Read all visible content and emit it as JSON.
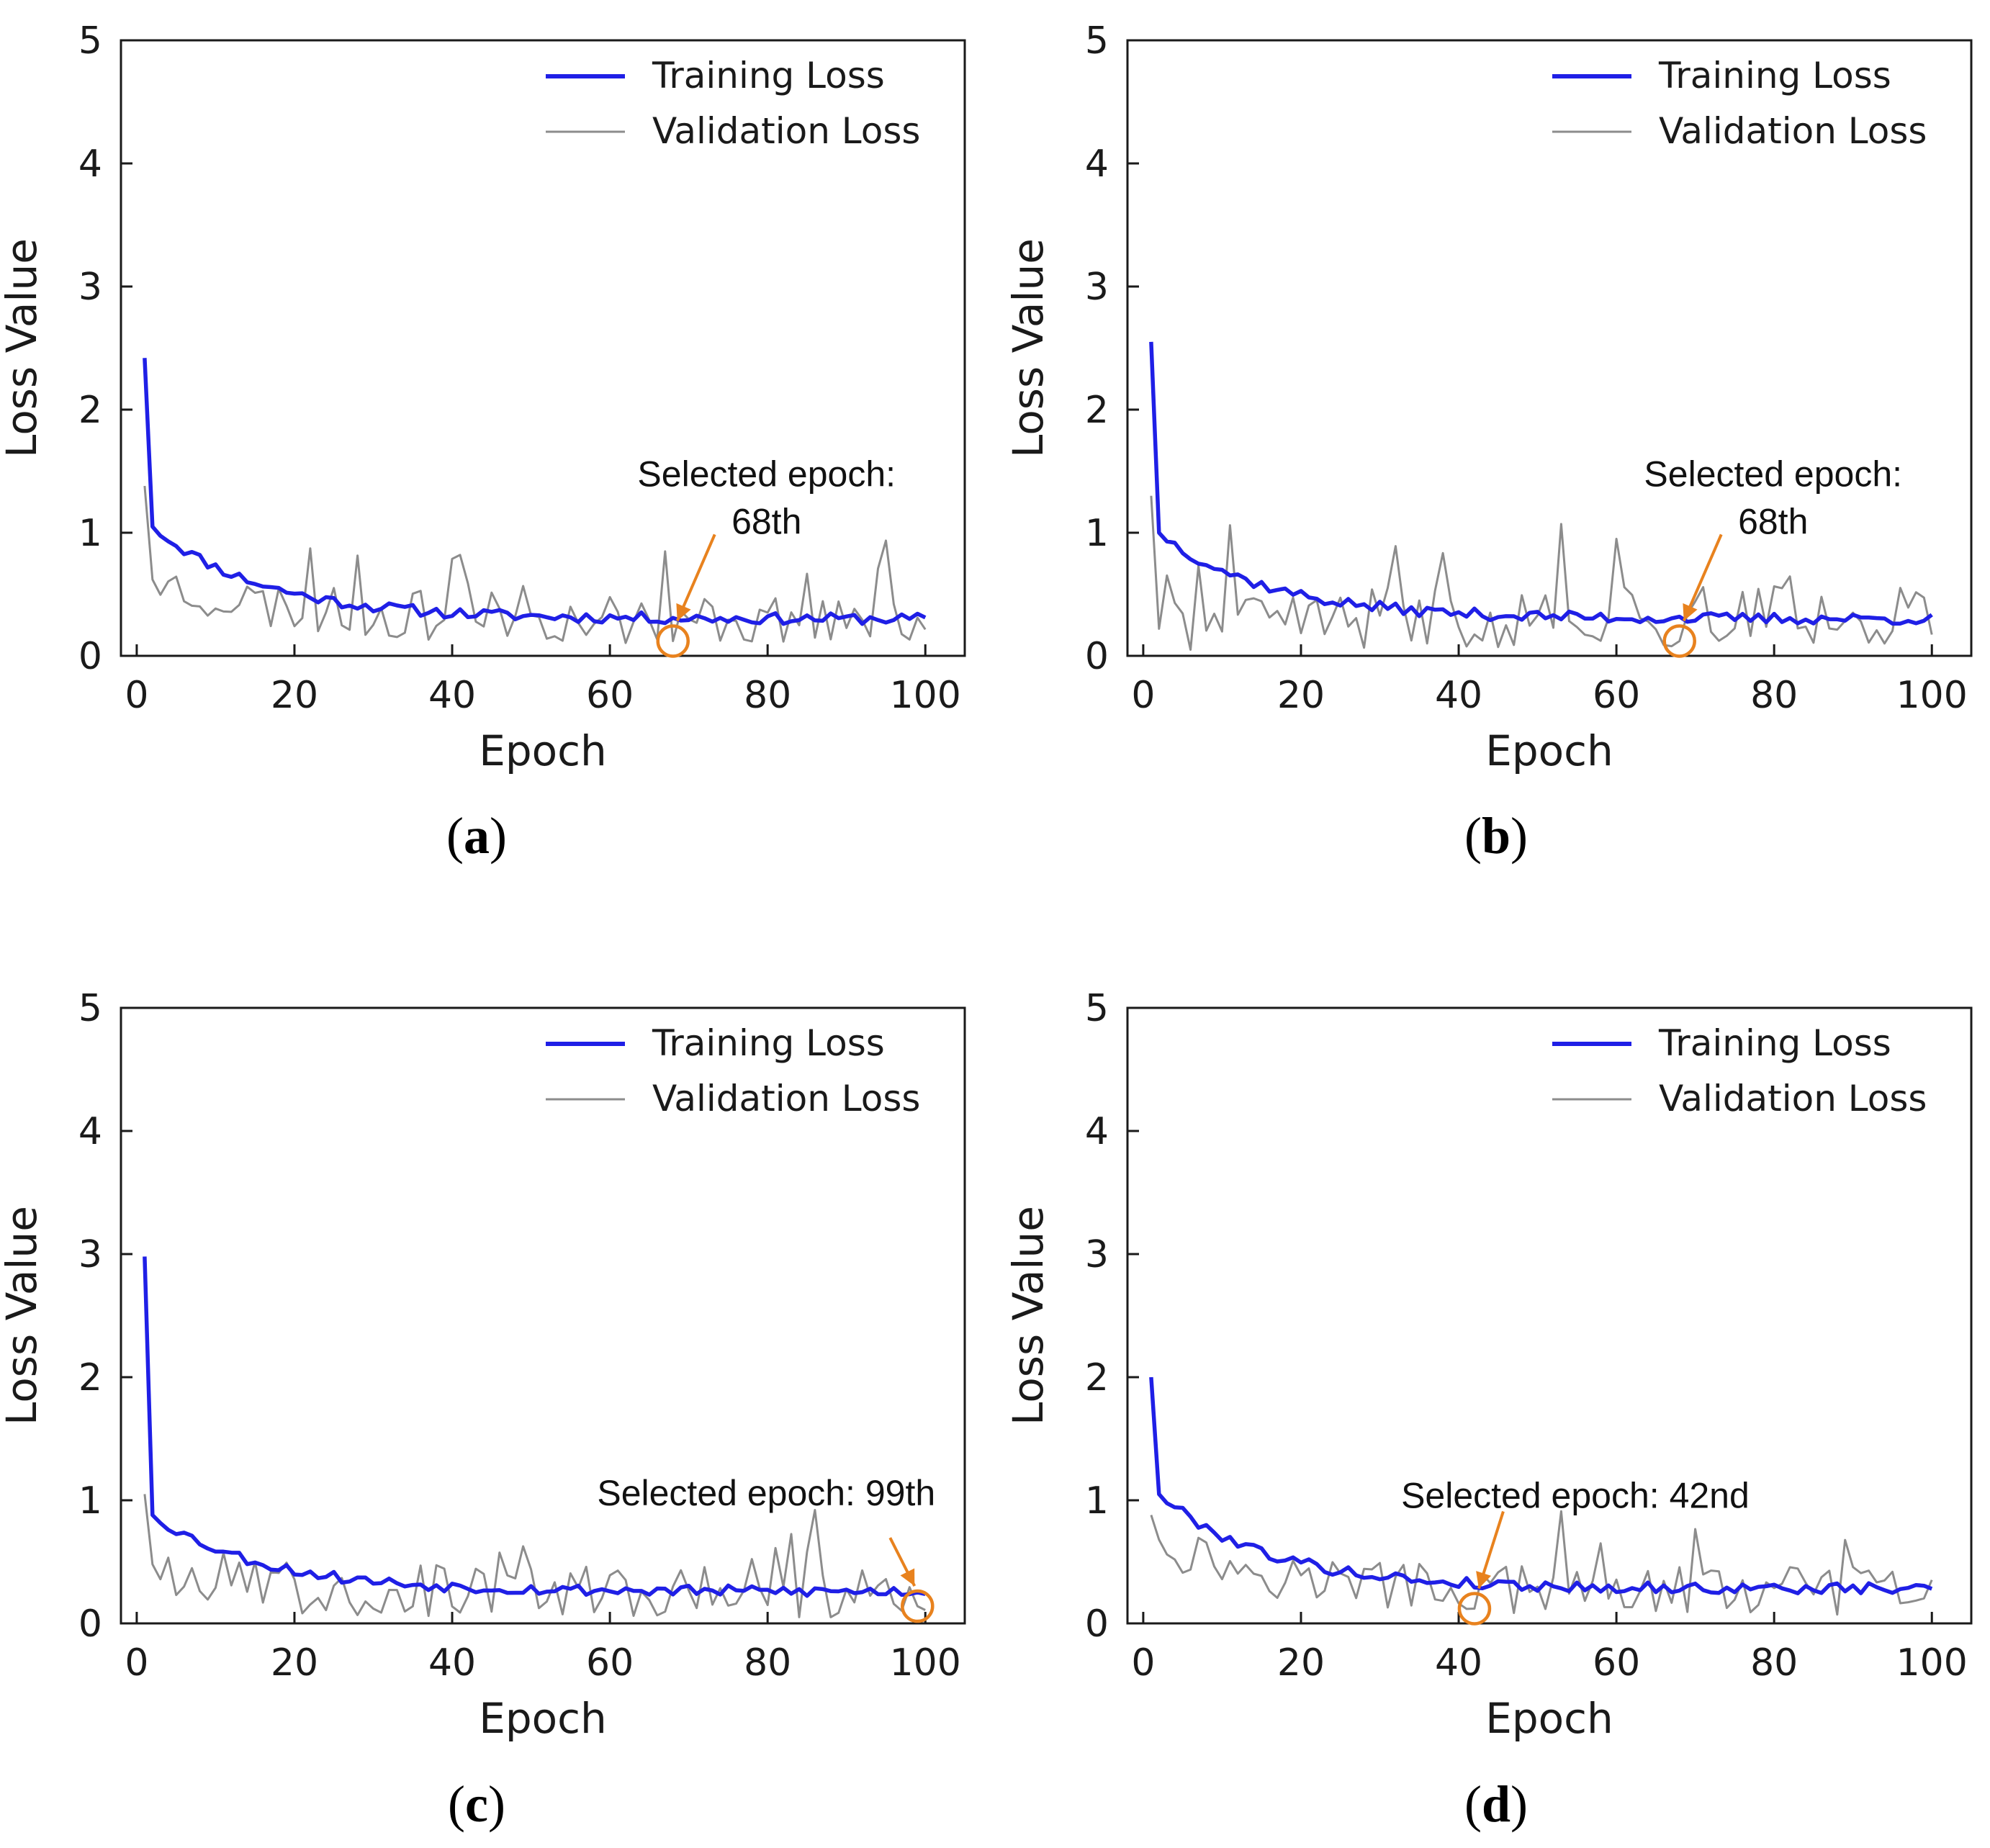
{
  "figure": {
    "style": {
      "training_color": "#1f1fe6",
      "validation_color": "#8c8c8c",
      "annotation_color": "#e8821e"
    }
  },
  "chart_data": [
    {
      "panel": "a",
      "type": "line",
      "panel_label": {
        "open": "(",
        "letter": "a",
        "close": ")"
      },
      "xlabel": "Epoch",
      "ylabel": "Loss Value",
      "xlim": [
        -2,
        105
      ],
      "ylim": [
        0,
        5
      ],
      "xticks": [
        "0",
        "20",
        "40",
        "60",
        "80",
        "100"
      ],
      "yticks": [
        "0",
        "1",
        "2",
        "3",
        "4",
        "5"
      ],
      "legend": [
        "Training Loss",
        "Validation Loss"
      ],
      "legend_position": "top-right",
      "annotation": {
        "line1": "Selected epoch:",
        "line2": "68th",
        "single": "",
        "epoch": 68,
        "loss": 0.12
      },
      "series": [
        {
          "name": "Training Loss",
          "seed": 11,
          "start": 2.42,
          "v2": 1.05,
          "floor": 0.3,
          "amp": 0.05
        },
        {
          "name": "Validation Loss",
          "seed": 23,
          "start": 1.38,
          "v2": 0.62,
          "floor": 0.3,
          "amp": 0.2
        }
      ]
    },
    {
      "panel": "b",
      "type": "line",
      "panel_label": {
        "open": "(",
        "letter": "b",
        "close": ")"
      },
      "xlabel": "Epoch",
      "ylabel": "Loss Value",
      "xlim": [
        -2,
        105
      ],
      "ylim": [
        0,
        5
      ],
      "xticks": [
        "0",
        "20",
        "40",
        "60",
        "80",
        "100"
      ],
      "yticks": [
        "0",
        "1",
        "2",
        "3",
        "4",
        "5"
      ],
      "legend": [
        "Training Loss",
        "Validation Loss"
      ],
      "legend_position": "top-right",
      "annotation": {
        "line1": "Selected epoch:",
        "line2": "68th",
        "single": "",
        "epoch": 68,
        "loss": 0.12
      },
      "series": [
        {
          "name": "Training Loss",
          "seed": 37,
          "start": 2.55,
          "v2": 1.0,
          "floor": 0.3,
          "amp": 0.05
        },
        {
          "name": "Validation Loss",
          "seed": 41,
          "start": 1.3,
          "v2": 0.22,
          "floor": 0.32,
          "amp": 0.25
        }
      ]
    },
    {
      "panel": "c",
      "type": "line",
      "panel_label": {
        "open": "(",
        "letter": "c",
        "close": ")"
      },
      "xlabel": "Epoch",
      "ylabel": "Loss Value",
      "xlim": [
        -2,
        105
      ],
      "ylim": [
        0,
        5
      ],
      "xticks": [
        "0",
        "20",
        "40",
        "60",
        "80",
        "100"
      ],
      "yticks": [
        "0",
        "1",
        "2",
        "3",
        "4",
        "5"
      ],
      "legend": [
        "Training Loss",
        "Validation Loss"
      ],
      "legend_position": "top-right",
      "annotation": {
        "line1": "",
        "line2": "",
        "single": "Selected epoch: 99th",
        "epoch": 99,
        "loss": 0.14
      },
      "series": [
        {
          "name": "Training Loss",
          "seed": 53,
          "start": 2.98,
          "v2": 0.88,
          "floor": 0.26,
          "amp": 0.05
        },
        {
          "name": "Validation Loss",
          "seed": 67,
          "start": 1.05,
          "v2": 0.48,
          "floor": 0.24,
          "amp": 0.22
        }
      ]
    },
    {
      "panel": "d",
      "type": "line",
      "panel_label": {
        "open": "(",
        "letter": "d",
        "close": ")"
      },
      "xlabel": "Epoch",
      "ylabel": "Loss Value",
      "xlim": [
        -2,
        105
      ],
      "ylim": [
        0,
        5
      ],
      "xticks": [
        "0",
        "20",
        "40",
        "60",
        "80",
        "100"
      ],
      "yticks": [
        "0",
        "1",
        "2",
        "3",
        "4",
        "5"
      ],
      "legend": [
        "Training Loss",
        "Validation Loss"
      ],
      "legend_position": "top-right",
      "annotation": {
        "line1": "",
        "line2": "",
        "single": "Selected epoch: 42nd",
        "epoch": 42,
        "loss": 0.12
      },
      "series": [
        {
          "name": "Training Loss",
          "seed": 79,
          "start": 2.0,
          "v2": 1.05,
          "floor": 0.28,
          "amp": 0.05
        },
        {
          "name": "Validation Loss",
          "seed": 97,
          "start": 0.88,
          "v2": 0.68,
          "floor": 0.26,
          "amp": 0.2
        }
      ]
    }
  ]
}
